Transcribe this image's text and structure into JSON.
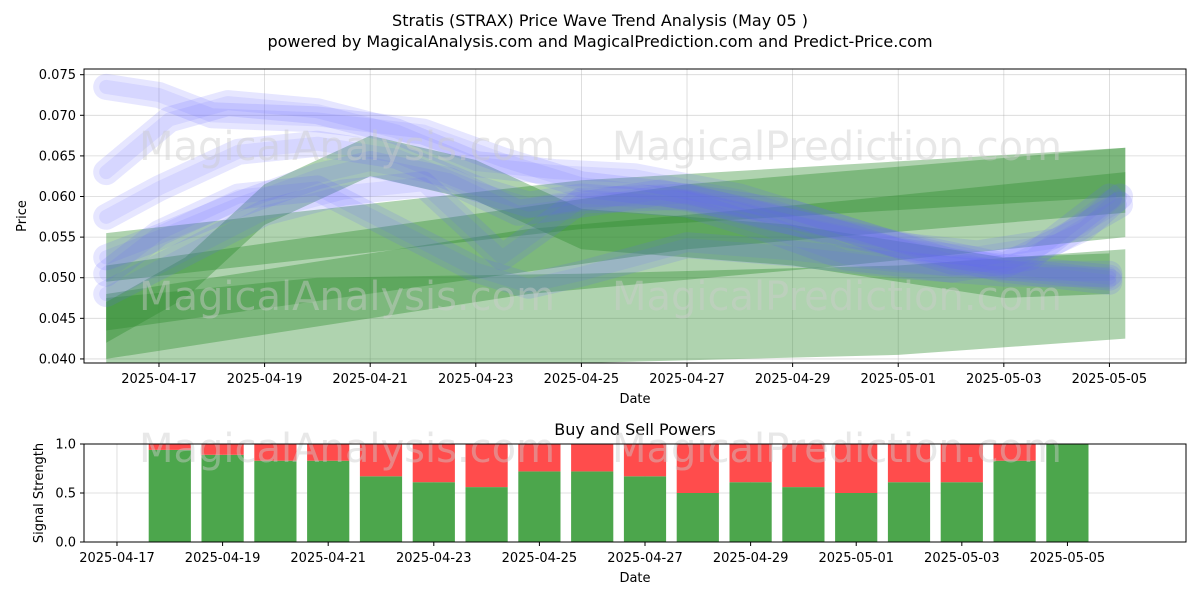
{
  "header": {
    "title": "Stratis (STRAX) Price Wave Trend Analysis (May 05 )",
    "subtitle": "powered by MagicalAnalysis.com and MagicalPrediction.com and Predict-Price.com"
  },
  "watermarks": [
    "MagicalAnalysis.com",
    "MagicalPrediction.com"
  ],
  "colors": {
    "blue_band": "#6666ff",
    "green_band": "#2e8b2e",
    "buy": "#4ca64c",
    "sell": "#ff4c4c"
  },
  "chart_data": [
    {
      "type": "area",
      "title": "",
      "xlabel": "Date",
      "ylabel": "Price",
      "ylim": [
        0.0395,
        0.0757
      ],
      "x_date_range": [
        "2025-04-15",
        "2025-05-06"
      ],
      "x_ticks": [
        "2025-04-17",
        "2025-04-19",
        "2025-04-21",
        "2025-04-23",
        "2025-04-25",
        "2025-04-27",
        "2025-04-29",
        "2025-05-01",
        "2025-05-03",
        "2025-05-05"
      ],
      "y_ticks": [
        "0.040",
        "0.045",
        "0.050",
        "0.055",
        "0.060",
        "0.065",
        "0.070",
        "0.075"
      ],
      "grid": true,
      "blue_bands": [
        {
          "x": [
            "2025-04-16",
            "2025-04-17",
            "2025-04-18",
            "2025-04-20",
            "2025-04-22",
            "2025-04-23.5",
            "2025-04-25",
            "2025-04-27",
            "2025-04-29",
            "2025-05-01",
            "2025-05-03",
            "2025-05-05"
          ],
          "y": [
            0.0735,
            0.0725,
            0.07,
            0.0695,
            0.068,
            0.0645,
            0.0615,
            0.06,
            0.058,
            0.054,
            0.051,
            0.0495
          ]
        },
        {
          "x": [
            "2025-04-16",
            "2025-04-17.2",
            "2025-04-18.3",
            "2025-04-20",
            "2025-04-21.5",
            "2025-04-23",
            "2025-04-24.5",
            "2025-04-26",
            "2025-04-28",
            "2025-04-30",
            "2025-05-02",
            "2025-05-05"
          ],
          "y": [
            0.063,
            0.0695,
            0.0715,
            0.0705,
            0.068,
            0.064,
            0.063,
            0.0625,
            0.06,
            0.056,
            0.052,
            0.05
          ]
        },
        {
          "x": [
            "2025-04-16",
            "2025-04-17",
            "2025-04-18.5",
            "2025-04-20",
            "2025-04-21.5",
            "2025-04-23",
            "2025-04-24",
            "2025-04-25",
            "2025-04-27",
            "2025-04-28.5",
            "2025-04-30",
            "2025-05-02",
            "2025-05-03.5",
            "2025-05-05"
          ],
          "y": [
            0.0575,
            0.061,
            0.0655,
            0.0665,
            0.065,
            0.061,
            0.059,
            0.06,
            0.059,
            0.056,
            0.0525,
            0.051,
            0.0525,
            0.06
          ]
        },
        {
          "x": [
            "2025-04-16",
            "2025-04-17",
            "2025-04-18.5",
            "2025-04-20",
            "2025-04-21",
            "2025-04-22.5",
            "2025-04-23.8",
            "2025-04-25",
            "2025-04-26.5",
            "2025-04-28",
            "2025-04-29.5",
            "2025-05-01",
            "2025-05-02.5",
            "2025-05-04",
            "2025-05-05.2"
          ],
          "y": [
            0.0525,
            0.055,
            0.059,
            0.0625,
            0.064,
            0.062,
            0.058,
            0.059,
            0.0605,
            0.0585,
            0.056,
            0.054,
            0.053,
            0.0545,
            0.059
          ]
        },
        {
          "x": [
            "2025-04-16",
            "2025-04-17.5",
            "2025-04-19",
            "2025-04-20.5",
            "2025-04-22",
            "2025-04-23.5",
            "2025-04-25",
            "2025-04-27",
            "2025-04-28.5",
            "2025-04-30",
            "2025-05-01.5",
            "2025-05-03",
            "2025-05-04.5",
            "2025-05-05.2"
          ],
          "y": [
            0.048,
            0.053,
            0.058,
            0.0605,
            0.0615,
            0.0525,
            0.0595,
            0.06,
            0.0575,
            0.0555,
            0.0535,
            0.0515,
            0.056,
            0.06
          ]
        },
        {
          "x": [
            "2025-04-16",
            "2025-04-17",
            "2025-04-18.5",
            "2025-04-20",
            "2025-04-21.5",
            "2025-04-23",
            "2025-04-24",
            "2025-04-25",
            "2025-04-27",
            "2025-04-29",
            "2025-05-01",
            "2025-05-03",
            "2025-05-05"
          ],
          "y": [
            0.0505,
            0.0555,
            0.06,
            0.061,
            0.056,
            0.051,
            0.049,
            0.0505,
            0.054,
            0.053,
            0.0515,
            0.0505,
            0.0505
          ]
        }
      ],
      "green_bands": [
        {
          "x": [
            "2025-04-16",
            "2025-04-25",
            "2025-05-05.3"
          ],
          "y": [
            0.0525,
            0.059,
            0.063
          ],
          "width": 0.003
        },
        {
          "x": [
            "2025-04-16",
            "2025-04-27",
            "2025-05-05.3"
          ],
          "y": [
            0.0475,
            0.0575,
            0.062
          ],
          "width": 0.004
        },
        {
          "x": [
            "2025-04-16",
            "2025-04-24",
            "2025-04-30",
            "2025-05-05.3"
          ],
          "y": [
            0.044,
            0.052,
            0.0555,
            0.059
          ],
          "width": 0.004
        },
        {
          "x": [
            "2025-04-16",
            "2025-04-17.5",
            "2025-04-19",
            "2025-04-21",
            "2025-04-23",
            "2025-04-25",
            "2025-04-27",
            "2025-04-29",
            "2025-05-01",
            "2025-05-03",
            "2025-05-05"
          ],
          "y": [
            0.0445,
            0.05,
            0.059,
            0.065,
            0.062,
            0.056,
            0.055,
            0.054,
            0.052,
            0.05,
            0.0505
          ],
          "width": 0.0025
        },
        {
          "x": [
            "2025-04-16",
            "2025-04-20",
            "2025-04-25",
            "2025-05-01",
            "2025-05-05.3"
          ],
          "y": [
            0.042,
            0.0445,
            0.045,
            0.046,
            0.048
          ],
          "width": 0.0055
        }
      ]
    },
    {
      "type": "bar",
      "title": "Buy and Sell Powers",
      "xlabel": "Date",
      "ylabel": "Signal Strength",
      "ylim": [
        0,
        1
      ],
      "y_ticks": [
        "0.0",
        "0.5",
        "1.0"
      ],
      "x_ticks": [
        "2025-04-17",
        "2025-04-19",
        "2025-04-21",
        "2025-04-23",
        "2025-04-25",
        "2025-04-27",
        "2025-04-29",
        "2025-05-01",
        "2025-05-03",
        "2025-05-05"
      ],
      "grid": true,
      "categories": [
        "2025-04-18",
        "2025-04-19",
        "2025-04-20",
        "2025-04-21",
        "2025-04-22",
        "2025-04-23",
        "2025-04-24",
        "2025-04-25",
        "2025-04-26",
        "2025-04-27",
        "2025-04-28",
        "2025-04-29",
        "2025-04-30",
        "2025-05-01",
        "2025-05-02",
        "2025-05-03",
        "2025-05-04",
        "2025-05-05"
      ],
      "series": [
        {
          "values": [
            0.94,
            0.89,
            0.83,
            0.83,
            0.67,
            0.61,
            0.56,
            0.72,
            0.72,
            0.67,
            0.5,
            0.61,
            0.56,
            0.5,
            0.61,
            0.61,
            0.83,
            1.0
          ]
        },
        {
          "values": [
            0.06,
            0.11,
            0.17,
            0.17,
            0.33,
            0.39,
            0.44,
            0.28,
            0.28,
            0.33,
            0.5,
            0.39,
            0.44,
            0.5,
            0.39,
            0.39,
            0.17,
            0.0
          ]
        }
      ]
    }
  ]
}
